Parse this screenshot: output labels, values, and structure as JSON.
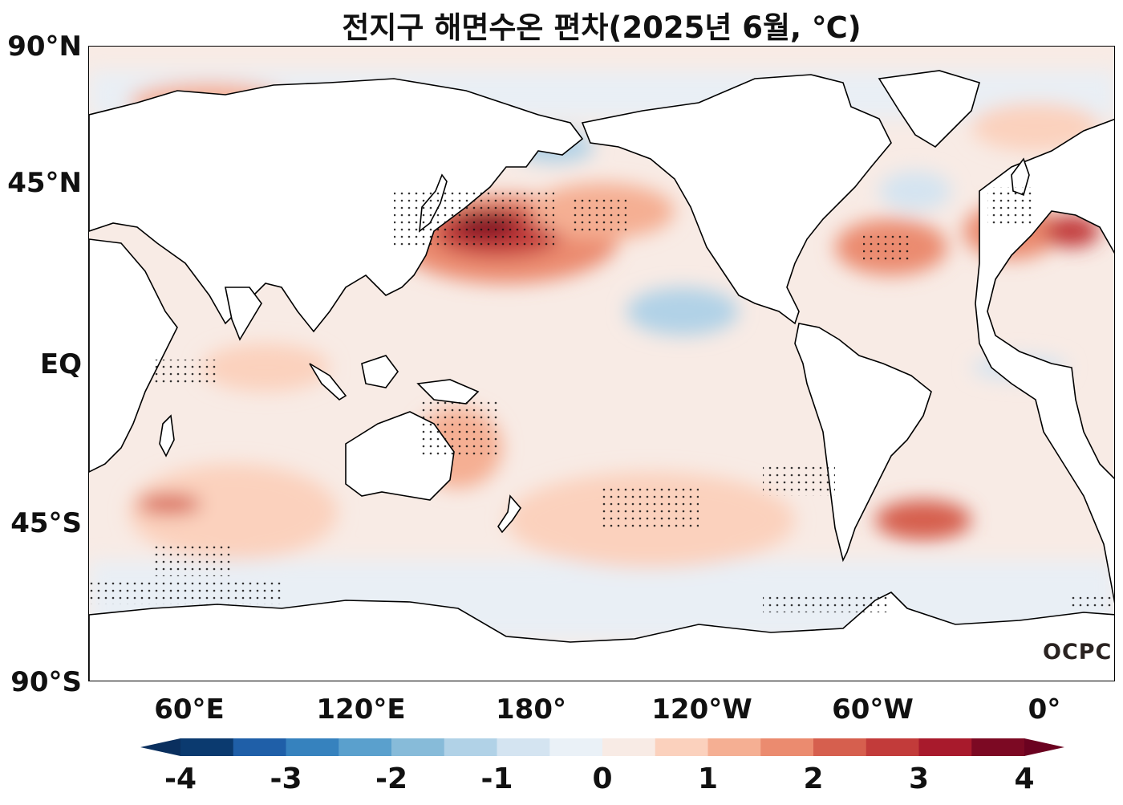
{
  "title": "전지구 해면수온 편차(2025년 6월, ℃)",
  "lat_labels": [
    "90°N",
    "45°N",
    "EQ",
    "45°S",
    "90°S"
  ],
  "lon_labels": [
    "60°E",
    "120°E",
    "180°",
    "120°W",
    "60°W",
    "0°"
  ],
  "colorbar": {
    "ticks": [
      "-4",
      "-3",
      "-2",
      "-1",
      "0",
      "1",
      "2",
      "3",
      "4"
    ],
    "levels": [
      -4,
      -3.5,
      -3,
      -2.5,
      -2,
      -1.5,
      -1,
      -0.5,
      0,
      0.5,
      1,
      1.5,
      2,
      2.5,
      3,
      3.5,
      4
    ],
    "colors": [
      "#0b3a6f",
      "#1f5fa8",
      "#3682be",
      "#5aa0cd",
      "#87bbd9",
      "#b1d2e7",
      "#d4e4f1",
      "#eaf1f7",
      "#f8ebe5",
      "#fbd1bd",
      "#f5af93",
      "#eb8b6f",
      "#d65f4e",
      "#c23b3a",
      "#a81a2c",
      "#7c0923"
    ],
    "under_color": "#0a2f5e",
    "over_color": "#6b0220"
  },
  "logo": "OCPC"
}
